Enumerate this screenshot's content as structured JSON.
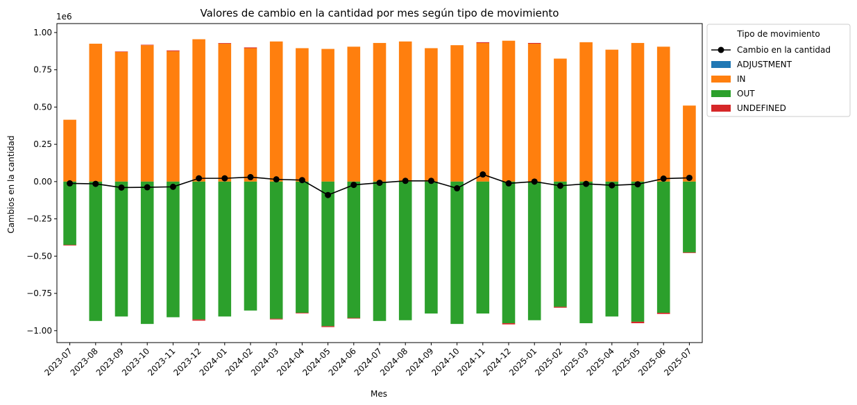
{
  "chart_data": {
    "type": "bar",
    "title": "Valores de cambio en la cantidad por mes según tipo de movimiento",
    "xlabel": "Mes",
    "ylabel": "Cambios en la cantidad",
    "y_scale_label": "1e6",
    "y_scale_factor": 1000000,
    "ylim": [
      -1.08,
      1.06
    ],
    "yticks": [
      -1.0,
      -0.75,
      -0.5,
      -0.25,
      0.0,
      0.25,
      0.5,
      0.75,
      1.0
    ],
    "ytick_labels": [
      "−1.00",
      "−0.75",
      "−0.50",
      "−0.25",
      "0.00",
      "0.25",
      "0.50",
      "0.75",
      "1.00"
    ],
    "grid": false,
    "stacked": true,
    "legend": {
      "title": "Tipo de movimiento",
      "placement": "outside-top-right"
    },
    "categories": [
      "2023-07",
      "2023-08",
      "2023-09",
      "2023-10",
      "2023-11",
      "2023-12",
      "2024-01",
      "2024-02",
      "2024-03",
      "2024-04",
      "2024-05",
      "2024-06",
      "2024-07",
      "2024-08",
      "2024-09",
      "2024-10",
      "2024-11",
      "2024-12",
      "2025-01",
      "2025-02",
      "2025-03",
      "2025-04",
      "2025-05",
      "2025-06",
      "2025-07"
    ],
    "series": [
      {
        "name": "ADJUSTMENT",
        "color": "#1f77b4",
        "values": [
          0,
          0,
          0,
          0,
          0,
          0,
          0,
          0,
          0,
          0,
          0,
          0,
          0,
          0,
          0,
          0,
          0,
          0,
          0,
          0,
          0,
          0,
          0,
          0,
          0
        ]
      },
      {
        "name": "IN",
        "color": "#ff7f0e",
        "values": [
          415000,
          925000,
          870000,
          915000,
          875000,
          955000,
          925000,
          895000,
          940000,
          895000,
          890000,
          905000,
          930000,
          940000,
          895000,
          915000,
          930000,
          945000,
          925000,
          825000,
          935000,
          885000,
          930000,
          905000,
          510000
        ]
      },
      {
        "name": "OUT",
        "color": "#2ca02c",
        "values": [
          -425000,
          -935000,
          -905000,
          -955000,
          -910000,
          -925000,
          -905000,
          -865000,
          -920000,
          -880000,
          -970000,
          -915000,
          -935000,
          -930000,
          -885000,
          -955000,
          -885000,
          -950000,
          -930000,
          -840000,
          -950000,
          -905000,
          -940000,
          -880000,
          -475000
        ]
      },
      {
        "name": "UNDEFINED",
        "color": "#d62728",
        "pos": [
          0,
          0,
          3000,
          3000,
          5000,
          0,
          4000,
          5000,
          0,
          0,
          0,
          0,
          0,
          0,
          0,
          0,
          5000,
          0,
          5000,
          0,
          0,
          0,
          0,
          0,
          0
        ],
        "neg": [
          -4000,
          0,
          0,
          0,
          0,
          -8000,
          0,
          0,
          -5000,
          -4000,
          -6000,
          -4000,
          0,
          0,
          0,
          0,
          0,
          -8000,
          0,
          -6000,
          0,
          0,
          -10000,
          -8000,
          -4000
        ]
      }
    ],
    "line": {
      "name": "Cambio en la cantidad",
      "color": "#000000",
      "values": [
        -12000,
        -15000,
        -40000,
        -38000,
        -35000,
        22000,
        22000,
        30000,
        15000,
        10000,
        -90000,
        -22000,
        -8000,
        5000,
        5000,
        -45000,
        48000,
        -12000,
        0,
        -28000,
        -15000,
        -25000,
        -18000,
        20000,
        25000
      ]
    }
  }
}
